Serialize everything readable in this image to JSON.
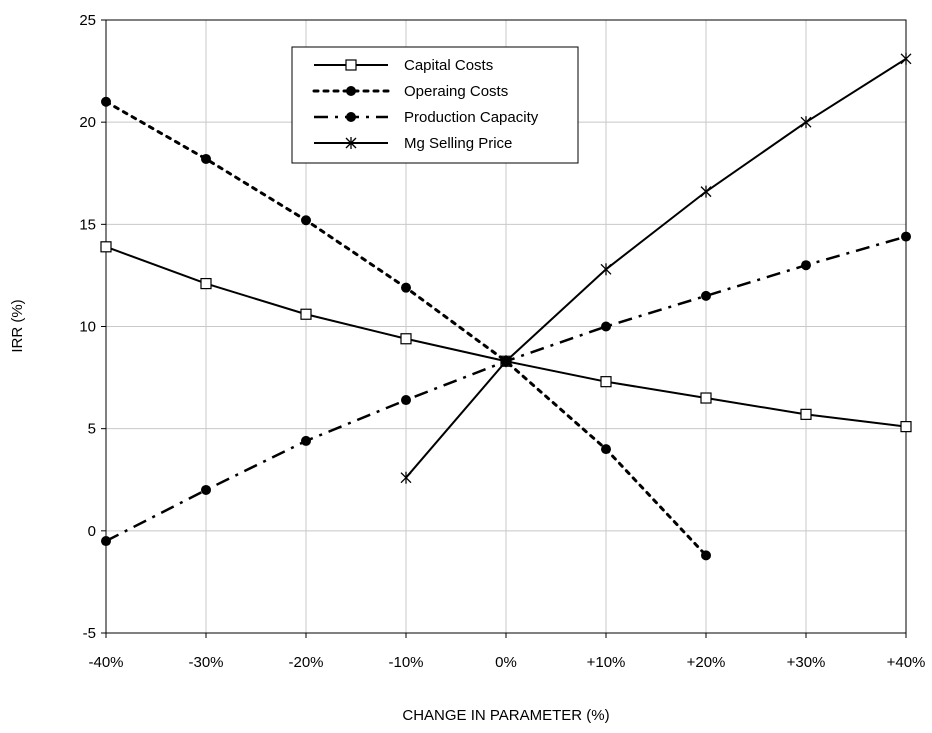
{
  "chart_data": {
    "type": "line",
    "xlabel": "CHANGE IN PARAMETER (%)",
    "ylabel": "IRR (%)",
    "x_categories": [
      "-40%",
      "-30%",
      "-20%",
      "-10%",
      "0%",
      "+10%",
      "+20%",
      "+30%",
      "+40%"
    ],
    "x_values": [
      -40,
      -30,
      -20,
      -10,
      0,
      10,
      20,
      30,
      40
    ],
    "ylim": [
      -5,
      25
    ],
    "y_ticks": [
      -5,
      0,
      5,
      10,
      15,
      20,
      25
    ],
    "grid": true,
    "legend_position": "top-center",
    "series": [
      {
        "name": "Capital Costs",
        "marker": "open-square",
        "line": "solid",
        "x": [
          -40,
          -30,
          -20,
          -10,
          0,
          10,
          20,
          30,
          40
        ],
        "y": [
          13.9,
          12.1,
          10.6,
          9.4,
          8.3,
          7.3,
          6.5,
          5.7,
          5.1
        ]
      },
      {
        "name": "Operaing Costs",
        "marker": "filled-circle",
        "line": "dotted",
        "x": [
          -40,
          -30,
          -20,
          -10,
          0,
          10,
          20
        ],
        "y": [
          21.0,
          18.2,
          15.2,
          11.9,
          8.3,
          4.0,
          -1.2
        ]
      },
      {
        "name": "Production Capacity",
        "marker": "filled-circle",
        "line": "dash-dot",
        "x": [
          -40,
          -30,
          -20,
          -10,
          0,
          10,
          20,
          30,
          40
        ],
        "y": [
          -0.5,
          2.0,
          4.4,
          6.4,
          8.3,
          10.0,
          11.5,
          13.0,
          14.4
        ]
      },
      {
        "name": "Mg Selling Price",
        "marker": "asterisk",
        "line": "solid",
        "x": [
          -10,
          0,
          10,
          20,
          30,
          40
        ],
        "y": [
          2.6,
          8.3,
          12.8,
          16.6,
          20.0,
          23.1
        ]
      }
    ]
  }
}
